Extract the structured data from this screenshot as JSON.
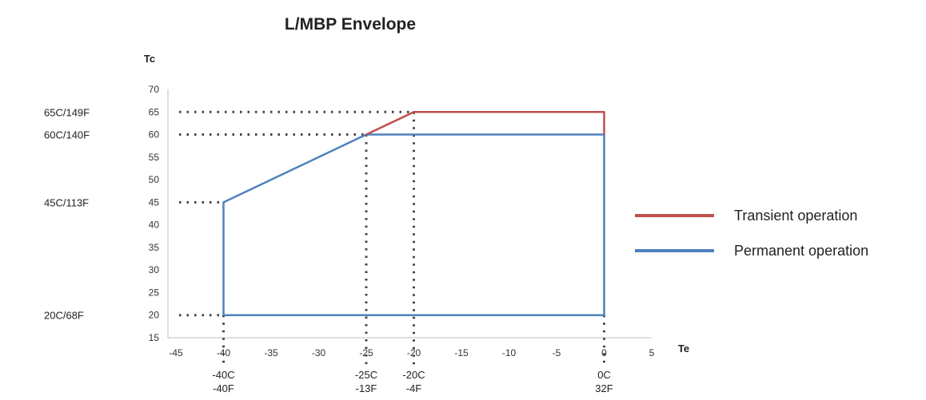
{
  "chart_data": {
    "type": "line",
    "title": "L/MBP Envelope",
    "xlabel": "Te",
    "ylabel": "Tc",
    "xlim": [
      -45,
      5
    ],
    "ylim": [
      15,
      70
    ],
    "x_ticks": [
      -45,
      -40,
      -35,
      -30,
      -25,
      -20,
      -15,
      -10,
      -5,
      0,
      5
    ],
    "y_ticks": [
      15,
      20,
      25,
      30,
      35,
      40,
      45,
      50,
      55,
      60,
      65,
      70
    ],
    "grid": false,
    "legend_position": "right",
    "series": [
      {
        "name": "Transient operation",
        "color": "#c0504d",
        "points": [
          [
            -25,
            60
          ],
          [
            -20,
            65
          ],
          [
            0,
            65
          ],
          [
            0,
            60
          ]
        ]
      },
      {
        "name": "Permanent operation",
        "color": "#4f81bd",
        "points": [
          [
            -40,
            20
          ],
          [
            -40,
            45
          ],
          [
            -25,
            60
          ],
          [
            0,
            60
          ],
          [
            0,
            20
          ],
          [
            -40,
            20
          ]
        ]
      }
    ],
    "y_reference_labels": [
      {
        "value": 65,
        "label": "65C/149F",
        "to_x": -20
      },
      {
        "value": 60,
        "label": "60C/140F",
        "to_x": -25
      },
      {
        "value": 45,
        "label": "45C/113F",
        "to_x": -40
      },
      {
        "value": 20,
        "label": "20C/68F",
        "to_x": -40
      }
    ],
    "x_reference_labels": [
      {
        "value": -40,
        "celsius": "-40C",
        "fahrenheit": "-40F",
        "from_y": 20
      },
      {
        "value": -25,
        "celsius": "-25C",
        "fahrenheit": "-13F",
        "from_y": 60
      },
      {
        "value": -20,
        "celsius": "-20C",
        "fahrenheit": "-4F",
        "from_y": 65
      },
      {
        "value": 0,
        "celsius": "0C",
        "fahrenheit": "32F",
        "from_y": 20
      }
    ]
  }
}
